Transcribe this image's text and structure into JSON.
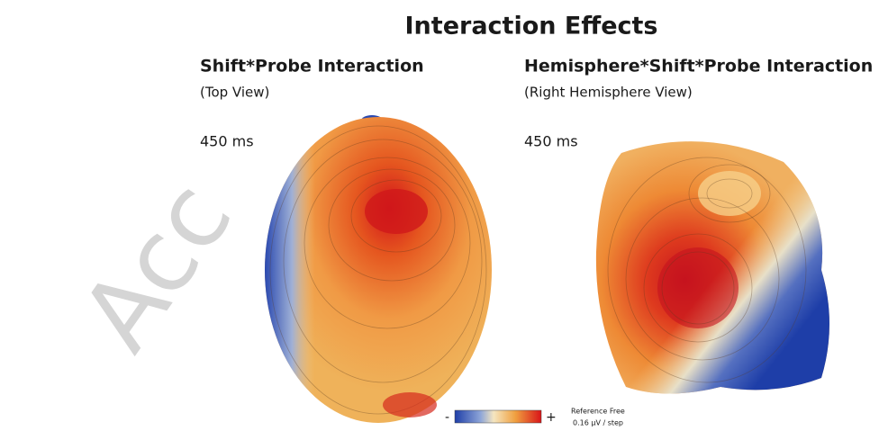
{
  "title": "Interaction Effects",
  "panels": [
    {
      "title": "Shift*Probe Interaction",
      "subtitle": "(Top View)",
      "time": "450 ms"
    },
    {
      "title": "Hemisphere*Shift*Probe Interaction",
      "subtitle": "(Right Hemisphere View)",
      "time": "450 ms"
    }
  ],
  "colorbar": {
    "minus": "-",
    "plus": "+",
    "reference": "Reference Free",
    "step": "0.16 µV / step"
  },
  "watermark": "Acc"
}
